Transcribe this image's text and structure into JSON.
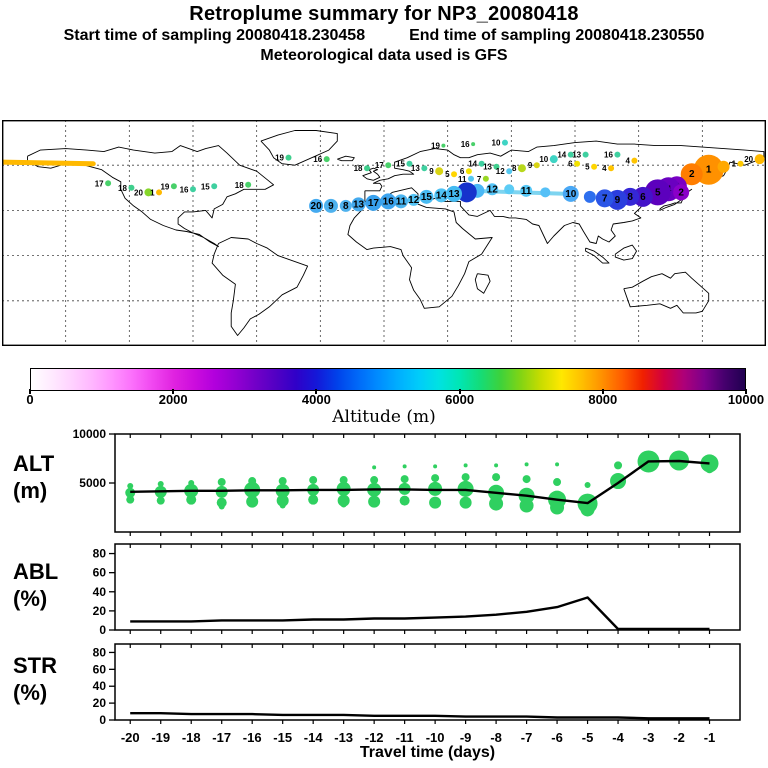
{
  "header": {
    "title": "Retroplume summary for NP3_20080418",
    "start_label": "Start time of sampling 20080418.230458",
    "end_label": "End time of sampling 20080418.230550",
    "met_label": "Meteorological data used is GFS"
  },
  "colorbar": {
    "title": "Altitude (m)",
    "min": 0,
    "max": 10000,
    "tick_labels": [
      "0",
      "2000",
      "4000",
      "6000",
      "8000",
      "10000"
    ],
    "colors": [
      "#ffffff",
      "#ffeaff",
      "#ffd2ff",
      "#ffb6ff",
      "#ff94ff",
      "#fb6efb",
      "#f046f0",
      "#e023e0",
      "#cc0ddd",
      "#b200dd",
      "#9400d2",
      "#7300c8",
      "#5200c4",
      "#3000c8",
      "#1418d8",
      "#0042ea",
      "#0068f8",
      "#008cff",
      "#00aeff",
      "#00ccfa",
      "#00e2e2",
      "#00e6b4",
      "#14dc78",
      "#3cd23c",
      "#82d414",
      "#c8dc00",
      "#ffe800",
      "#ffc000",
      "#ff9000",
      "#ff5a00",
      "#f02000",
      "#d20040",
      "#ae0078",
      "#7c008c",
      "#46006e",
      "#200050"
    ]
  },
  "panels": {
    "alt": {
      "line1": "ALT",
      "line2": "(m)"
    },
    "abl": {
      "line1": "ABL",
      "line2": "(%)"
    },
    "str": {
      "line1": "STR",
      "line2": "(%)"
    }
  },
  "xaxis": {
    "label": "Travel time (days)",
    "ticks": [
      "-20",
      "-19",
      "-18",
      "-17",
      "-16",
      "-15",
      "-14",
      "-13",
      "-12",
      "-11",
      "-10",
      "-9",
      "-8",
      "-7",
      "-6",
      "-5",
      "-4",
      "-3",
      "-2",
      "-1"
    ]
  },
  "chart_data": [
    {
      "type": "scatter",
      "name": "retroplume-map",
      "description": "World map of retroplume positions by travel day, colored by altitude",
      "lon_range": [
        -180,
        180
      ],
      "lat_range": [
        -60,
        90
      ],
      "points": [
        {
          "day": "1",
          "lon": 153,
          "lat": 57,
          "r": 15,
          "color": "#ff9100"
        },
        {
          "day": "2",
          "lon": 145,
          "lat": 54,
          "r": 11,
          "color": "#ff7d00"
        },
        {
          "day": "",
          "lon": 160,
          "lat": 59,
          "r": 6,
          "color": "#ffa800"
        },
        {
          "day": "20",
          "lon": 177,
          "lat": 64,
          "r": 5,
          "color": "#ffb900"
        },
        {
          "day": "1",
          "lon": 168,
          "lat": 61,
          "r": 3,
          "color": "#ffc900"
        },
        {
          "day": "3",
          "lon": 138,
          "lat": 46,
          "r": 10,
          "color": "#7a00c4"
        },
        {
          "day": "4",
          "lon": 134,
          "lat": 44,
          "r": 12,
          "color": "#6a00c0"
        },
        {
          "day": "5",
          "lon": 129,
          "lat": 42,
          "r": 13,
          "color": "#5c00bd"
        },
        {
          "day": "2",
          "lon": 140,
          "lat": 42,
          "r": 8,
          "color": "#8a00c8"
        },
        {
          "day": "6",
          "lon": 122,
          "lat": 39,
          "r": 10,
          "color": "#4413c9"
        },
        {
          "day": "8",
          "lon": 116,
          "lat": 39,
          "r": 9,
          "color": "#3527d6"
        },
        {
          "day": "9",
          "lon": 110,
          "lat": 37,
          "r": 10,
          "color": "#2b3ede"
        },
        {
          "day": "7",
          "lon": 104,
          "lat": 38,
          "r": 9,
          "color": "#2b55e6"
        },
        {
          "day": "",
          "lon": 97,
          "lat": 39,
          "r": 6,
          "color": "#2e6fee"
        },
        {
          "day": "10",
          "lon": 88,
          "lat": 41,
          "r": 8,
          "color": "#49a8f5"
        },
        {
          "day": "",
          "lon": 76,
          "lat": 42,
          "r": 5,
          "color": "#55c0f7"
        },
        {
          "day": "11",
          "lon": 67,
          "lat": 43,
          "r": 6,
          "color": "#55c8f7"
        },
        {
          "day": "",
          "lon": 59,
          "lat": 44,
          "r": 5,
          "color": "#5cccf5"
        },
        {
          "day": "12",
          "lon": 51,
          "lat": 44,
          "r": 6,
          "color": "#55c4f7"
        },
        {
          "day": "",
          "lon": 44,
          "lat": 43,
          "r": 7,
          "color": "#4ab8f5"
        },
        {
          "day": "",
          "lon": 39,
          "lat": 42,
          "r": 10,
          "color": "#1633cc"
        },
        {
          "day": "13",
          "lon": 33,
          "lat": 41,
          "r": 8,
          "color": "#44bbf2"
        },
        {
          "day": "14",
          "lon": 27,
          "lat": 40,
          "r": 7,
          "color": "#4fc2f4"
        },
        {
          "day": "15",
          "lon": 20,
          "lat": 39,
          "r": 7,
          "color": "#49bbf2"
        },
        {
          "day": "12",
          "lon": 14,
          "lat": 37,
          "r": 6,
          "color": "#55c4f5"
        },
        {
          "day": "11",
          "lon": 8,
          "lat": 36,
          "r": 7,
          "color": "#4ab4f0"
        },
        {
          "day": "16",
          "lon": 2,
          "lat": 36,
          "r": 8,
          "color": "#3da4ee"
        },
        {
          "day": "17",
          "lon": -5,
          "lat": 35,
          "r": 8,
          "color": "#38a0ec"
        },
        {
          "day": "13",
          "lon": -12,
          "lat": 34,
          "r": 7,
          "color": "#44aaee"
        },
        {
          "day": "8",
          "lon": -18,
          "lat": 33,
          "r": 6,
          "color": "#4fb2ee"
        },
        {
          "day": "9",
          "lon": -25,
          "lat": 33,
          "r": 7,
          "color": "#4fb2ee"
        },
        {
          "day": "20",
          "lon": -32,
          "lat": 33,
          "r": 7,
          "color": "#44aaf0"
        },
        {
          "day": "17",
          "lon": -130,
          "lat": 48,
          "r": 3,
          "color": "#49d06a"
        },
        {
          "day": "18",
          "lon": -119,
          "lat": 45,
          "r": 3,
          "color": "#3fcf8d"
        },
        {
          "day": "20",
          "lon": -111,
          "lat": 42,
          "r": 4,
          "color": "#86d62a"
        },
        {
          "day": "1",
          "lon": -106,
          "lat": 42,
          "r": 3,
          "color": "#ffb900"
        },
        {
          "day": "19",
          "lon": -99,
          "lat": 46,
          "r": 3,
          "color": "#49d06a"
        },
        {
          "day": "16",
          "lon": -90,
          "lat": 44,
          "r": 3,
          "color": "#3fd0a0"
        },
        {
          "day": "15",
          "lon": -80,
          "lat": 46,
          "r": 3,
          "color": "#3fd0a0"
        },
        {
          "day": "18",
          "lon": -64,
          "lat": 47,
          "r": 3,
          "color": "#49d06a"
        },
        {
          "day": "19",
          "lon": -45,
          "lat": 65,
          "r": 3,
          "color": "#3fcf8d"
        },
        {
          "day": "16",
          "lon": -27,
          "lat": 64,
          "r": 3,
          "color": "#49d06a"
        },
        {
          "day": "18",
          "lon": -8,
          "lat": 58,
          "r": 3,
          "color": "#3fcf8d"
        },
        {
          "day": "17",
          "lon": 2,
          "lat": 60,
          "r": 3,
          "color": "#49d06a"
        },
        {
          "day": "15",
          "lon": 12,
          "lat": 61,
          "r": 3,
          "color": "#3fd0a0"
        },
        {
          "day": "13",
          "lon": 19,
          "lat": 58,
          "r": 3,
          "color": "#3fd0a0"
        },
        {
          "day": "9",
          "lon": 26,
          "lat": 56,
          "r": 4,
          "color": "#d8d414"
        },
        {
          "day": "5",
          "lon": 33,
          "lat": 54,
          "r": 3,
          "color": "#ffd500"
        },
        {
          "day": "6",
          "lon": 40,
          "lat": 56,
          "r": 3,
          "color": "#f2e200"
        },
        {
          "day": "14",
          "lon": 46,
          "lat": 61,
          "r": 3,
          "color": "#3fd0a0"
        },
        {
          "day": "13",
          "lon": 53,
          "lat": 59,
          "r": 3,
          "color": "#3fcf8d"
        },
        {
          "day": "12",
          "lon": 59,
          "lat": 56,
          "r": 3,
          "color": "#55c8f0"
        },
        {
          "day": "8",
          "lon": 65,
          "lat": 58,
          "r": 4,
          "color": "#b8d81c"
        },
        {
          "day": "9",
          "lon": 72,
          "lat": 60,
          "r": 3,
          "color": "#d8d414"
        },
        {
          "day": "10",
          "lon": 80,
          "lat": 64,
          "r": 4,
          "color": "#3fd4c4"
        },
        {
          "day": "6",
          "lon": 91,
          "lat": 61,
          "r": 3,
          "color": "#f2e200"
        },
        {
          "day": "5",
          "lon": 99,
          "lat": 59,
          "r": 3,
          "color": "#ffd500"
        },
        {
          "day": "4",
          "lon": 107,
          "lat": 58,
          "r": 3,
          "color": "#ffc400"
        },
        {
          "day": "14",
          "lon": 88,
          "lat": 67,
          "r": 3,
          "color": "#3fd0a0"
        },
        {
          "day": "13",
          "lon": 95,
          "lat": 67,
          "r": 3,
          "color": "#3fd0a0"
        },
        {
          "day": "19",
          "lon": 28,
          "lat": 73,
          "r": 2,
          "color": "#49d06a"
        },
        {
          "day": "16",
          "lon": 42,
          "lat": 74,
          "r": 2,
          "color": "#49d06a"
        },
        {
          "day": "10",
          "lon": 57,
          "lat": 75,
          "r": 3,
          "color": "#3fd4c4"
        },
        {
          "day": "7",
          "lon": 48,
          "lat": 51,
          "r": 3,
          "color": "#9ad824"
        },
        {
          "day": "11",
          "lon": 41,
          "lat": 51,
          "r": 3,
          "color": "#55c8f0"
        },
        {
          "day": "16",
          "lon": 110,
          "lat": 67,
          "r": 3,
          "color": "#3fd0a0"
        },
        {
          "day": "4",
          "lon": 118,
          "lat": 63,
          "r": 3,
          "color": "#ffc400"
        }
      ],
      "tracks": [
        {
          "lon": [
            -180,
            -137
          ],
          "lat": [
            62,
            61
          ],
          "color": "#ffb900",
          "width": 5
        },
        {
          "lon": [
            41,
            87
          ],
          "lat": [
            43,
            41
          ],
          "color": "#7dd4f0",
          "width": 4
        },
        {
          "lon": [
            122,
            138
          ],
          "lat": [
            39,
            46
          ],
          "color": "#2a1fd0",
          "width": 4
        },
        {
          "lon": [
            138,
            150
          ],
          "lat": [
            46,
            56
          ],
          "color": "#2a1fd0",
          "width": 3
        }
      ]
    },
    {
      "type": "line",
      "name": "ALT",
      "ylabel": "ALT (m)",
      "ylim": [
        0,
        10000
      ],
      "yticks": [
        5000,
        10000
      ],
      "x": [
        -20,
        -19,
        -18,
        -17,
        -16,
        -15,
        -14,
        -13,
        -12,
        -11,
        -10,
        -9,
        -8,
        -7,
        -6,
        -5,
        -4,
        -3,
        -2,
        -1
      ],
      "values": [
        4100,
        4150,
        4200,
        4200,
        4250,
        4250,
        4300,
        4300,
        4350,
        4350,
        4300,
        4300,
        4000,
        3700,
        3300,
        2950,
        5000,
        7200,
        7250,
        7000
      ],
      "bubbles_day_alt_r": [
        [
          -20,
          4000,
          5
        ],
        [
          -20,
          3300,
          4
        ],
        [
          -20,
          4700,
          3
        ],
        [
          -19,
          4100,
          6
        ],
        [
          -19,
          3200,
          4
        ],
        [
          -19,
          4900,
          3
        ],
        [
          -18,
          4200,
          7
        ],
        [
          -18,
          3300,
          5
        ],
        [
          -18,
          5000,
          3
        ],
        [
          -17,
          4100,
          6
        ],
        [
          -17,
          3000,
          5
        ],
        [
          -17,
          5100,
          4
        ],
        [
          -17,
          2600,
          3
        ],
        [
          -16,
          4300,
          8
        ],
        [
          -16,
          3100,
          6
        ],
        [
          -16,
          5200,
          4
        ],
        [
          -15,
          4200,
          7
        ],
        [
          -15,
          3200,
          6
        ],
        [
          -15,
          5200,
          4
        ],
        [
          -15,
          2700,
          3
        ],
        [
          -14,
          4300,
          6
        ],
        [
          -14,
          3300,
          5
        ],
        [
          -14,
          5300,
          4
        ],
        [
          -13,
          4400,
          7
        ],
        [
          -13,
          3200,
          6
        ],
        [
          -13,
          5300,
          4
        ],
        [
          -13,
          2800,
          3
        ],
        [
          -12,
          4300,
          7
        ],
        [
          -12,
          3100,
          6
        ],
        [
          -12,
          5300,
          4
        ],
        [
          -12,
          6600,
          2
        ],
        [
          -11,
          4400,
          6
        ],
        [
          -11,
          3200,
          5
        ],
        [
          -11,
          5400,
          4
        ],
        [
          -11,
          6700,
          2
        ],
        [
          -10,
          4400,
          7
        ],
        [
          -10,
          3000,
          6
        ],
        [
          -10,
          5500,
          4
        ],
        [
          -10,
          6700,
          2
        ],
        [
          -9,
          4400,
          8
        ],
        [
          -9,
          3000,
          6
        ],
        [
          -9,
          5600,
          4
        ],
        [
          -9,
          6800,
          2
        ],
        [
          -8,
          4000,
          8
        ],
        [
          -8,
          2900,
          7
        ],
        [
          -8,
          5600,
          4
        ],
        [
          -8,
          6800,
          2
        ],
        [
          -7,
          3700,
          8
        ],
        [
          -7,
          2700,
          7
        ],
        [
          -7,
          5400,
          4
        ],
        [
          -7,
          6900,
          2
        ],
        [
          -6,
          3300,
          9
        ],
        [
          -6,
          2500,
          7
        ],
        [
          -6,
          5100,
          4
        ],
        [
          -6,
          6900,
          2
        ],
        [
          -5,
          2900,
          10
        ],
        [
          -5,
          2300,
          7
        ],
        [
          -5,
          4800,
          3
        ],
        [
          -4,
          5200,
          8
        ],
        [
          -4,
          6800,
          4
        ],
        [
          -3,
          7200,
          11
        ],
        [
          -2,
          7300,
          10
        ],
        [
          -1,
          7000,
          9
        ],
        [
          -1,
          6400,
          4
        ]
      ],
      "bubble_color": "#2fd060",
      "line_color": "#000000"
    },
    {
      "type": "line",
      "name": "ABL",
      "ylabel": "ABL (%)",
      "ylim": [
        0,
        90
      ],
      "yticks": [
        0,
        20,
        40,
        60,
        80
      ],
      "x": [
        -20,
        -19,
        -18,
        -17,
        -16,
        -15,
        -14,
        -13,
        -12,
        -11,
        -10,
        -9,
        -8,
        -7,
        -6,
        -5,
        -4,
        -3,
        -2,
        -1
      ],
      "values": [
        9,
        9,
        9,
        10,
        10,
        10,
        11,
        11,
        12,
        12,
        13,
        14,
        16,
        19,
        24,
        34,
        1,
        1,
        1,
        1
      ],
      "line_color": "#000000"
    },
    {
      "type": "line",
      "name": "STR",
      "ylabel": "STR (%)",
      "ylim": [
        0,
        90
      ],
      "yticks": [
        0,
        20,
        40,
        60,
        80
      ],
      "x": [
        -20,
        -19,
        -18,
        -17,
        -16,
        -15,
        -14,
        -13,
        -12,
        -11,
        -10,
        -9,
        -8,
        -7,
        -6,
        -5,
        -4,
        -3,
        -2,
        -1
      ],
      "values": [
        8,
        8,
        7,
        7,
        7,
        6,
        6,
        6,
        5,
        5,
        5,
        4,
        4,
        4,
        3,
        3,
        3,
        2,
        2,
        2
      ],
      "line_color": "#000000"
    }
  ]
}
